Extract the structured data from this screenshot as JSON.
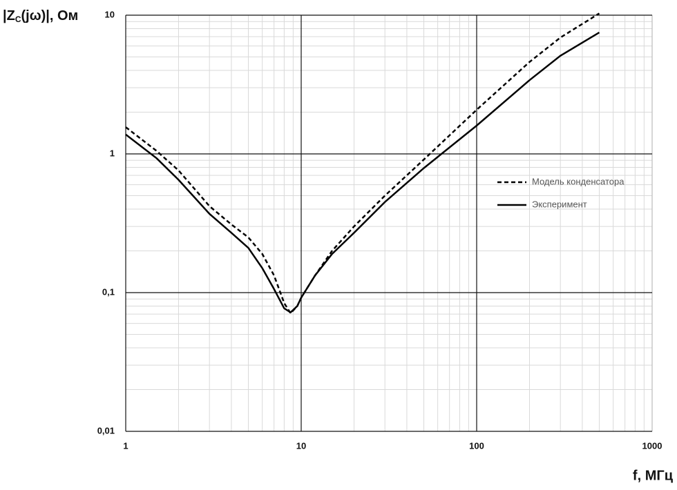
{
  "chart_data": {
    "type": "line",
    "ylabel_parts": [
      "|Z",
      "C",
      "(jω)|, Ом"
    ],
    "xlabel": "f, МГц",
    "xscale": "log",
    "yscale": "log",
    "xlim": [
      1,
      1000
    ],
    "ylim": [
      0.01,
      10
    ],
    "xticks": [
      1,
      10,
      100,
      1000
    ],
    "yticks": [
      {
        "value": 0.01,
        "label": "0,01"
      },
      {
        "value": 0.1,
        "label": "0,1"
      },
      1,
      10
    ],
    "grid": true,
    "minor_grid": true,
    "legend_position": "center right",
    "series": [
      {
        "name": "Модель конденсатора",
        "color": "#000000",
        "line_style": "dashed",
        "x": [
          1,
          1.5,
          2,
          3,
          4,
          5,
          6,
          7,
          8,
          8.7,
          9.5,
          10,
          12,
          15,
          20,
          30,
          50,
          100,
          200,
          300,
          500
        ],
        "values": [
          1.56,
          1.05,
          0.76,
          0.42,
          0.31,
          0.25,
          0.19,
          0.133,
          0.084,
          0.071,
          0.08,
          0.092,
          0.133,
          0.2,
          0.3,
          0.5,
          0.91,
          2.08,
          4.6,
          6.9,
          10.3
        ]
      },
      {
        "name": "Эксперимент",
        "color": "#000000",
        "line_style": "solid",
        "x": [
          1,
          1.5,
          2,
          3,
          4,
          5,
          6,
          7,
          8,
          8.7,
          9.5,
          10,
          12,
          15,
          20,
          30,
          50,
          100,
          200,
          300,
          500
        ],
        "values": [
          1.38,
          0.93,
          0.65,
          0.37,
          0.27,
          0.21,
          0.15,
          0.106,
          0.077,
          0.072,
          0.08,
          0.092,
          0.133,
          0.19,
          0.27,
          0.45,
          0.79,
          1.6,
          3.4,
          5.1,
          7.5
        ]
      }
    ]
  }
}
